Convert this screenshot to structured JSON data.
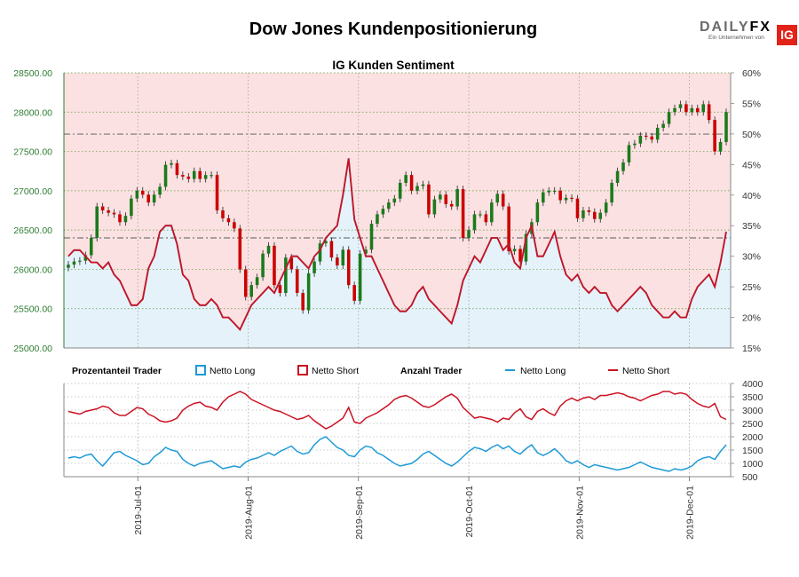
{
  "header": {
    "title": "Dow Jones Kundenpositionierung",
    "logo_text": "DAILYFX",
    "logo_subtext": "Ein Unternehmen von",
    "logo_badge": "IG"
  },
  "colors": {
    "up": "#1b7a1b",
    "down": "#cc0000",
    "long": "#1c9ad6",
    "short": "#cc1122",
    "bg_long": "#e5f2fa",
    "bg_short": "#fbe1e1"
  },
  "legend": {
    "group1": "Prozentanteil Trader",
    "group1_long": "Netto Long",
    "group1_short": "Netto Short",
    "group2": "Anzahl Trader",
    "group2_long": "Netto Long",
    "group2_short": "Netto Short"
  },
  "chart_data": [
    {
      "type": "candlestick",
      "title": "IG Kunden Sentiment",
      "ylim": [
        25000,
        28500
      ],
      "y_ticks": [
        "25000.00",
        "25500.00",
        "26000.00",
        "26500.00",
        "27000.00",
        "27500.00",
        "28000.00",
        "28500.00"
      ],
      "secondary_ylim": [
        15,
        60
      ],
      "secondary_ticks": [
        "15%",
        "20%",
        "25%",
        "30%",
        "35%",
        "40%",
        "45%",
        "50%",
        "55%",
        "60%"
      ],
      "x_ticks": [
        "2019-Jul-01",
        "2019-Aug-01",
        "2019-Sep-01",
        "2019-Oct-01",
        "2019-Nov-01",
        "2019-Dec-01"
      ],
      "reference_lines": [
        26400,
        27720
      ],
      "close": [
        26060,
        26100,
        26110,
        26180,
        26400,
        26800,
        26750,
        26720,
        26700,
        26600,
        26680,
        26900,
        27000,
        26950,
        26850,
        26950,
        27050,
        27330,
        27350,
        27200,
        27180,
        27150,
        27250,
        27150,
        27200,
        27200,
        26750,
        26650,
        26600,
        26520,
        26000,
        25650,
        25800,
        25900,
        26200,
        26300,
        25800,
        25700,
        26150,
        26000,
        25700,
        25480,
        25950,
        26100,
        26330,
        26360,
        26150,
        26050,
        26250,
        25800,
        25600,
        26200,
        26250,
        26580,
        26700,
        26770,
        26850,
        26900,
        27100,
        27200,
        27000,
        27060,
        27080,
        26700,
        26890,
        26950,
        26830,
        26800,
        27020,
        26400,
        26500,
        26700,
        26700,
        26600,
        26850,
        26960,
        26800,
        26230,
        26260,
        26100,
        26450,
        26600,
        26850,
        26980,
        27000,
        27000,
        26880,
        26910,
        26900,
        26650,
        26750,
        26730,
        26640,
        26720,
        26850,
        27100,
        27250,
        27360,
        27580,
        27600,
        27700,
        27690,
        27650,
        27800,
        27850,
        28000,
        28050,
        28100,
        28000,
        28050,
        28000,
        28100,
        27900,
        27500,
        27620,
        28000
      ],
      "percent_long": [
        30,
        31,
        31,
        30,
        29,
        29,
        28,
        29,
        27,
        26,
        24,
        22,
        22,
        23,
        28,
        30,
        34,
        35,
        35,
        32,
        27,
        26,
        23,
        22,
        22,
        23,
        22,
        20,
        20,
        19,
        18,
        20,
        22,
        23,
        24,
        25,
        24,
        26,
        28,
        30,
        30,
        29,
        28,
        30,
        31,
        33,
        34,
        35,
        40,
        46,
        36,
        33,
        30,
        30,
        28,
        26,
        24,
        22,
        21,
        21,
        22,
        24,
        25,
        23,
        22,
        21,
        20,
        19,
        22,
        26,
        28,
        30,
        29,
        31,
        33,
        33,
        31,
        32,
        29,
        28,
        33,
        35,
        30,
        30,
        32,
        34,
        30,
        27,
        26,
        27,
        25,
        24,
        25,
        24,
        24,
        22,
        21,
        22,
        23,
        24,
        25,
        24,
        22,
        21,
        20,
        20,
        21,
        20,
        20,
        23,
        25,
        26,
        27,
        25,
        29,
        34
      ],
      "percent_short": [
        70,
        69,
        69,
        70,
        71,
        71,
        72,
        71,
        73,
        74,
        76,
        78,
        78,
        77,
        72,
        70,
        66,
        65,
        65,
        68,
        73,
        74,
        77,
        78,
        78,
        77,
        78,
        80,
        80,
        81,
        82,
        80,
        78,
        77,
        76,
        75,
        76,
        74,
        72,
        70,
        70,
        71,
        72,
        70,
        69,
        67,
        66,
        65,
        60,
        54,
        64,
        67,
        70,
        70,
        72,
        74,
        76,
        78,
        79,
        79,
        78,
        76,
        75,
        77,
        78,
        79,
        80,
        81,
        78,
        74,
        72,
        70,
        71,
        69,
        67,
        67,
        69,
        68,
        71,
        72,
        67,
        65,
        70,
        70,
        68,
        66,
        70,
        73,
        74,
        73,
        75,
        76,
        75,
        76,
        76,
        78,
        79,
        78,
        77,
        76,
        75,
        76,
        78,
        79,
        80,
        80,
        79,
        80,
        80,
        77,
        75,
        74,
        73,
        75,
        71,
        66
      ]
    },
    {
      "type": "line",
      "title": "",
      "ylim": [
        500,
        4000
      ],
      "y_ticks": [
        "500",
        "1000",
        "1500",
        "2000",
        "2500",
        "3000",
        "3500",
        "4000"
      ],
      "x_ticks": [
        "2019-Jul-01",
        "2019-Aug-01",
        "2019-Sep-01",
        "2019-Oct-01",
        "2019-Nov-01",
        "2019-Dec-01"
      ],
      "series": [
        {
          "name": "Netto Long",
          "values": [
            1200,
            1250,
            1200,
            1300,
            1350,
            1100,
            900,
            1150,
            1400,
            1450,
            1300,
            1200,
            1100,
            950,
            1000,
            1250,
            1400,
            1600,
            1500,
            1450,
            1150,
            1000,
            900,
            1000,
            1050,
            1100,
            950,
            800,
            850,
            900,
            850,
            1050,
            1150,
            1200,
            1300,
            1400,
            1300,
            1450,
            1550,
            1650,
            1450,
            1350,
            1400,
            1700,
            1900,
            2000,
            1800,
            1600,
            1500,
            1300,
            1250,
            1500,
            1650,
            1600,
            1400,
            1300,
            1150,
            1000,
            900,
            950,
            1000,
            1150,
            1350,
            1450,
            1300,
            1150,
            1000,
            900,
            1050,
            1250,
            1450,
            1600,
            1550,
            1450,
            1600,
            1700,
            1550,
            1650,
            1450,
            1350,
            1550,
            1700,
            1400,
            1300,
            1400,
            1550,
            1350,
            1100,
            1000,
            1100,
            950,
            850,
            950,
            900,
            850,
            800,
            750,
            800,
            850,
            950,
            1050,
            950,
            850,
            800,
            750,
            700,
            800,
            750,
            800,
            900,
            1100,
            1200,
            1250,
            1150,
            1450,
            1700
          ]
        },
        {
          "name": "Netto Short",
          "values": [
            2950,
            2900,
            2850,
            2950,
            3000,
            3050,
            3150,
            3100,
            2900,
            2800,
            2800,
            2950,
            3100,
            3050,
            2850,
            2750,
            2600,
            2550,
            2600,
            2700,
            3000,
            3150,
            3250,
            3300,
            3150,
            3100,
            3000,
            3300,
            3500,
            3600,
            3700,
            3600,
            3400,
            3300,
            3200,
            3100,
            3000,
            2950,
            2850,
            2750,
            2650,
            2700,
            2800,
            2600,
            2450,
            2300,
            2400,
            2550,
            2700,
            3100,
            2550,
            2500,
            2700,
            2800,
            2900,
            3050,
            3200,
            3400,
            3500,
            3550,
            3450,
            3300,
            3150,
            3100,
            3200,
            3350,
            3500,
            3600,
            3450,
            3100,
            2900,
            2700,
            2750,
            2700,
            2650,
            2550,
            2700,
            2650,
            2900,
            3050,
            2750,
            2650,
            2950,
            3050,
            2900,
            2800,
            3150,
            3350,
            3450,
            3350,
            3450,
            3500,
            3400,
            3550,
            3550,
            3600,
            3650,
            3600,
            3500,
            3450,
            3350,
            3450,
            3550,
            3600,
            3700,
            3700,
            3600,
            3650,
            3600,
            3400,
            3250,
            3150,
            3100,
            3250,
            2750,
            2650
          ]
        }
      ]
    }
  ]
}
